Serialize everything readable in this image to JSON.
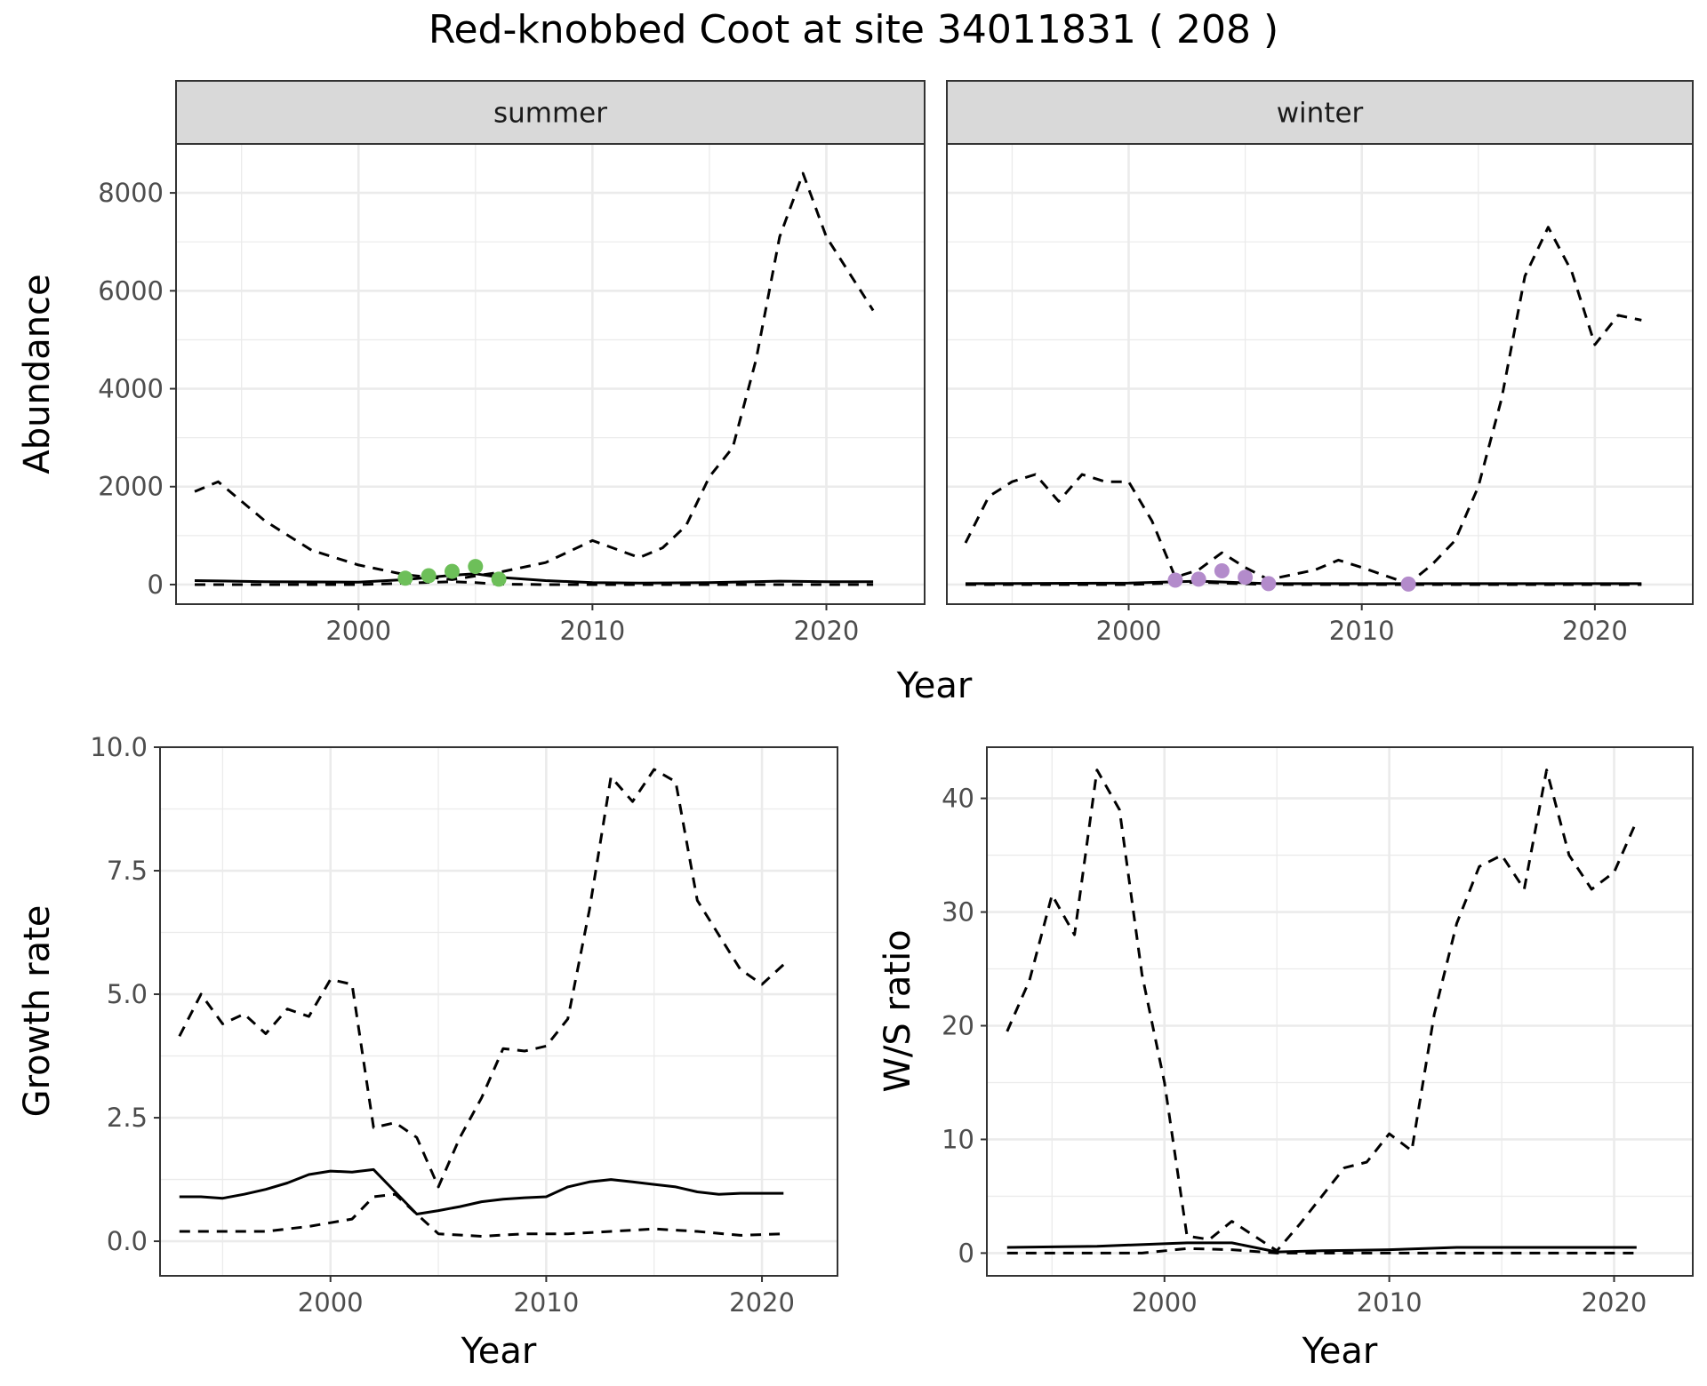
{
  "title": "Red-knobbed Coot at site 34011831 ( 208 )",
  "colors": {
    "summer_points": "#6DBF59",
    "winter_points": "#B38BCB",
    "line": "#000000",
    "strip_bg": "#D9D9D9",
    "grid": "#EBEBEB"
  },
  "chart_data": [
    {
      "type": "line",
      "panel": "summer",
      "strip_label": "summer",
      "xlabel": "Year",
      "ylabel": "Abundance",
      "xlim": [
        1992.2,
        2024.2
      ],
      "ylim": [
        -400,
        9000
      ],
      "xticks": [
        2000,
        2010,
        2020
      ],
      "yticks": [
        0,
        2000,
        4000,
        6000,
        8000
      ],
      "series": [
        {
          "style": "solid",
          "x": [
            1993,
            1996,
            2000,
            2002,
            2004,
            2005,
            2006,
            2008,
            2010,
            2012,
            2015,
            2018,
            2020,
            2022
          ],
          "y": [
            80,
            60,
            50,
            100,
            190,
            220,
            150,
            80,
            40,
            30,
            40,
            70,
            60,
            60
          ]
        },
        {
          "style": "dashed",
          "x": [
            1993,
            1994,
            1996,
            1998,
            2000,
            2002,
            2004,
            2006,
            2008,
            2010,
            2012,
            2013,
            2014,
            2015,
            2016,
            2017,
            2018,
            2019,
            2020,
            2022
          ],
          "y": [
            1900,
            2100,
            1300,
            700,
            400,
            200,
            100,
            250,
            450,
            900,
            550,
            750,
            1200,
            2200,
            2800,
            4600,
            7100,
            8400,
            7100,
            5600
          ]
        },
        {
          "style": "dashed",
          "x": [
            1993,
            2000,
            2004,
            2005,
            2006,
            2008,
            2022
          ],
          "y": [
            0,
            0,
            60,
            40,
            10,
            0,
            0
          ]
        }
      ],
      "points": {
        "x": [
          2002,
          2003,
          2004,
          2005,
          2006
        ],
        "y": [
          130,
          180,
          270,
          370,
          110
        ]
      }
    },
    {
      "type": "line",
      "panel": "winter",
      "strip_label": "winter",
      "xlabel": "Year",
      "ylabel": "Abundance",
      "xlim": [
        1992.2,
        2024.2
      ],
      "ylim": [
        -400,
        9000
      ],
      "xticks": [
        2000,
        2010,
        2020
      ],
      "yticks": [
        0,
        2000,
        4000,
        6000,
        8000
      ],
      "series": [
        {
          "style": "solid",
          "x": [
            1993,
            2000,
            2003,
            2006,
            2012,
            2022
          ],
          "y": [
            20,
            30,
            70,
            20,
            20,
            20
          ]
        },
        {
          "style": "dashed",
          "x": [
            1993,
            1994,
            1995,
            1996,
            1997,
            1998,
            1999,
            2000,
            2001,
            2002,
            2003,
            2004,
            2005,
            2006,
            2008,
            2009,
            2010,
            2012,
            2013,
            2014,
            2015,
            2016,
            2017,
            2018,
            2019,
            2020,
            2021,
            2022
          ],
          "y": [
            850,
            1800,
            2100,
            2250,
            1700,
            2250,
            2100,
            2100,
            1300,
            150,
            300,
            650,
            350,
            100,
            300,
            500,
            350,
            20,
            400,
            900,
            2000,
            3800,
            6300,
            7300,
            6400,
            4900,
            5500,
            5400
          ]
        },
        {
          "style": "dashed",
          "x": [
            1993,
            2000,
            2003,
            2004,
            2006,
            2022
          ],
          "y": [
            0,
            0,
            50,
            30,
            0,
            0
          ]
        }
      ],
      "points": {
        "x": [
          2002,
          2003,
          2004,
          2005,
          2006,
          2012
        ],
        "y": [
          90,
          110,
          280,
          150,
          20,
          10
        ]
      }
    },
    {
      "type": "line",
      "panel": "growth",
      "xlabel": "Year",
      "ylabel": "Growth rate",
      "xlim": [
        1992.1,
        2023.5
      ],
      "ylim": [
        -0.7,
        10.0
      ],
      "xticks": [
        2000,
        2010,
        2020
      ],
      "yticks": [
        0.0,
        2.5,
        5.0,
        7.5,
        10.0
      ],
      "ytick_labels": [
        "0.0",
        "2.5",
        "5.0",
        "7.5",
        "10.0"
      ],
      "series": [
        {
          "style": "solid",
          "x": [
            1993,
            1994,
            1995,
            1996,
            1997,
            1998,
            1999,
            2000,
            2001,
            2002,
            2003,
            2004,
            2005,
            2006,
            2007,
            2008,
            2009,
            2010,
            2011,
            2012,
            2013,
            2014,
            2015,
            2016,
            2017,
            2018,
            2019,
            2020,
            2021
          ],
          "y": [
            0.9,
            0.9,
            0.87,
            0.95,
            1.05,
            1.18,
            1.35,
            1.42,
            1.4,
            1.45,
            1.0,
            0.55,
            0.62,
            0.7,
            0.8,
            0.85,
            0.88,
            0.9,
            1.1,
            1.2,
            1.25,
            1.2,
            1.15,
            1.1,
            1.0,
            0.95,
            0.97,
            0.97,
            0.97
          ]
        },
        {
          "style": "dashed",
          "x": [
            1993,
            1994,
            1995,
            1996,
            1997,
            1998,
            1999,
            2000,
            2001,
            2002,
            2003,
            2004,
            2005,
            2006,
            2007,
            2008,
            2009,
            2010,
            2011,
            2012,
            2013,
            2014,
            2015,
            2016,
            2017,
            2018,
            2019,
            2020,
            2021
          ],
          "y": [
            4.15,
            5.0,
            4.4,
            4.6,
            4.2,
            4.7,
            4.55,
            5.3,
            5.2,
            2.3,
            2.4,
            2.1,
            1.1,
            2.1,
            2.9,
            3.9,
            3.85,
            3.95,
            4.5,
            6.7,
            9.4,
            8.9,
            9.55,
            9.3,
            6.9,
            6.2,
            5.5,
            5.2,
            5.6
          ]
        },
        {
          "style": "dashed",
          "x": [
            1993,
            1995,
            1997,
            1999,
            2001,
            2002,
            2003,
            2004,
            2005,
            2007,
            2009,
            2011,
            2013,
            2015,
            2017,
            2019,
            2021
          ],
          "y": [
            0.2,
            0.2,
            0.2,
            0.3,
            0.45,
            0.9,
            0.95,
            0.55,
            0.15,
            0.1,
            0.15,
            0.15,
            0.2,
            0.25,
            0.2,
            0.12,
            0.15
          ]
        }
      ]
    },
    {
      "type": "line",
      "panel": "ratio",
      "xlabel": "Year",
      "ylabel": "W/S ratio",
      "xlim": [
        1992.1,
        2023.5
      ],
      "ylim": [
        -2,
        44.5
      ],
      "xticks": [
        2000,
        2010,
        2020
      ],
      "yticks": [
        0,
        10,
        20,
        30,
        40
      ],
      "series": [
        {
          "style": "solid",
          "x": [
            1993,
            1997,
            2001,
            2003,
            2005,
            2007,
            2010,
            2013,
            2016,
            2019,
            2021
          ],
          "y": [
            0.5,
            0.6,
            0.9,
            0.9,
            0.1,
            0.2,
            0.3,
            0.5,
            0.5,
            0.5,
            0.5
          ]
        },
        {
          "style": "dashed",
          "x": [
            1993,
            1994,
            1995,
            1996,
            1997,
            1998,
            1999,
            2000,
            2001,
            2002,
            2003,
            2004,
            2005,
            2006,
            2007,
            2008,
            2009,
            2010,
            2011,
            2012,
            2013,
            2014,
            2015,
            2016,
            2017,
            2018,
            2019,
            2020,
            2021
          ],
          "y": [
            19.5,
            24,
            31.5,
            28,
            42.5,
            39,
            24.5,
            15,
            1.5,
            1.2,
            2.8,
            1.5,
            0.2,
            2.5,
            5,
            7.5,
            8,
            10.5,
            9,
            21,
            29,
            34,
            35,
            32,
            42.5,
            35,
            32,
            33.5,
            38
          ]
        },
        {
          "style": "dashed",
          "x": [
            1993,
            1999,
            2001,
            2003,
            2005,
            2021
          ],
          "y": [
            0,
            0,
            0.4,
            0.3,
            0,
            0
          ]
        }
      ]
    }
  ]
}
